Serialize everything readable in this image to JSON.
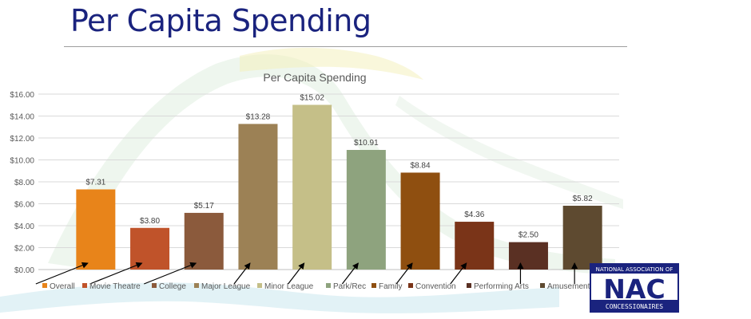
{
  "slide": {
    "title": "Per Capita Spending"
  },
  "logo": {
    "text_top": "NATIONAL ASSOCIATION OF",
    "text_main": "NAC",
    "text_bottom": "CONCESSIONAIRES",
    "color": "#1a237e"
  },
  "chart_data": {
    "type": "bar",
    "title": "Per Capita Spending",
    "xlabel": "",
    "ylabel": "",
    "categories": [
      "Overall",
      "Movie Theatre",
      "College",
      "Major League",
      "Minor League",
      "Park/Rec",
      "Family",
      "Convention",
      "Performing Arts",
      "Amusement"
    ],
    "values": [
      7.31,
      3.8,
      5.17,
      13.28,
      15.02,
      10.91,
      8.84,
      4.36,
      2.5,
      5.82
    ],
    "value_labels": [
      "$7.31",
      "$3.80",
      "$5.17",
      "$13.28",
      "$15.02",
      "$10.91",
      "$8.84",
      "$4.36",
      "$2.50",
      "$5.82"
    ],
    "colors": [
      "#e8841a",
      "#c0532a",
      "#8b5a3c",
      "#9c8155",
      "#c5bf88",
      "#8ea37e",
      "#8f4f10",
      "#7a3418",
      "#5a3023",
      "#5e4a30"
    ],
    "ylim": [
      0,
      16
    ],
    "yticks": [
      0,
      2,
      4,
      6,
      8,
      10,
      12,
      14,
      16
    ],
    "ytick_labels": [
      "$0.00",
      "$2.00",
      "$4.00",
      "$6.00",
      "$8.00",
      "$10.00",
      "$12.00",
      "$14.00",
      "$16.00"
    ],
    "grid": true,
    "legend": "bottom",
    "annotations": "arrows pointing to each bar"
  }
}
